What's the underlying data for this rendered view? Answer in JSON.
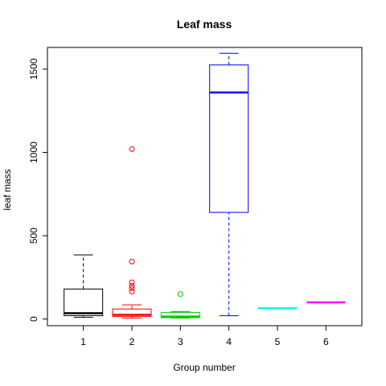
{
  "chart_data": {
    "type": "box",
    "title": "Leaf mass",
    "xlabel": "Group number",
    "ylabel": "leaf mass",
    "ylim": [
      -40,
      1630
    ],
    "yticks": [
      0,
      500,
      1000,
      1500
    ],
    "ytick_labels": [
      "0",
      "500",
      "1000",
      "1500"
    ],
    "grid": false,
    "legend": "none",
    "categories": [
      "1",
      "2",
      "3",
      "4",
      "5",
      "6"
    ],
    "groups": [
      {
        "label": "1",
        "color": "#000000",
        "min": 10,
        "q1": 20,
        "median": 35,
        "q3": 180,
        "max": 385,
        "outliers": []
      },
      {
        "label": "2",
        "color": "#ff0000",
        "min": 5,
        "q1": 15,
        "median": 25,
        "q3": 60,
        "max": 85,
        "outliers": [
          165,
          185,
          200,
          220,
          345,
          1020
        ]
      },
      {
        "label": "3",
        "color": "#00cc00",
        "min": 5,
        "q1": 8,
        "median": 15,
        "q3": 40,
        "max": 45,
        "outliers": [
          150
        ]
      },
      {
        "label": "4",
        "color": "#0000ff",
        "min": 20,
        "q1": 640,
        "median": 1360,
        "q3": 1525,
        "max": 1595,
        "outliers": []
      },
      {
        "label": "5",
        "color": "#00ffff",
        "min": 65,
        "q1": 65,
        "median": 65,
        "q3": 65,
        "max": 65,
        "outliers": []
      },
      {
        "label": "6",
        "color": "#ff00ff",
        "min": 100,
        "q1": 100,
        "median": 100,
        "q3": 100,
        "max": 100,
        "outliers": []
      }
    ]
  }
}
